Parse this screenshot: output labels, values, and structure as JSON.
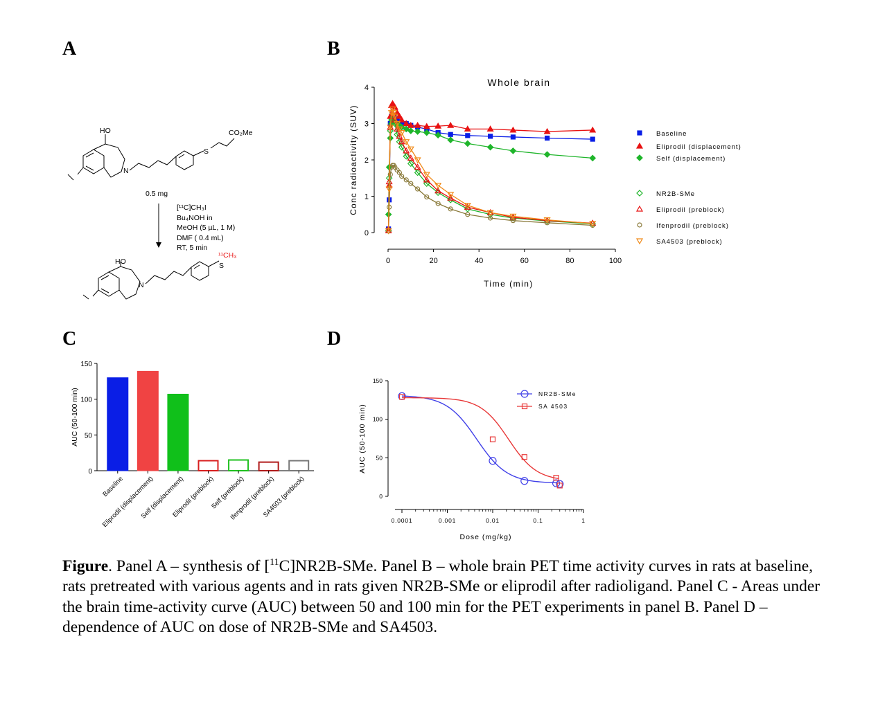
{
  "panels": {
    "a": "A",
    "b": "B",
    "c": "C",
    "d": "D"
  },
  "panel_a": {
    "reactant_ho": "HO",
    "reactant_n": "N",
    "reactant_s": "S",
    "reactant_ester": "CO₂Me",
    "amount": "0.5 mg",
    "reagents": [
      "[¹¹C]CH₃I",
      "Bu₄NOH in",
      "MeOH (5 µL, 1 M)",
      "DMF ( 0.4 mL)",
      "RT, 5 min"
    ],
    "product_ho": "HO",
    "product_n": "N",
    "product_s": "S",
    "product_label": "¹¹CH₃"
  },
  "chart_data": [
    {
      "panel": "B",
      "type": "line",
      "title": "Whole brain",
      "xlabel": "Time (min)",
      "ylabel": "Conc radioactivity (SUV)",
      "xlim": [
        0,
        100
      ],
      "ylim": [
        0,
        4
      ],
      "xticks": [
        "0",
        "20",
        "40",
        "60",
        "80",
        "100"
      ],
      "yticks": [
        "0",
        "1",
        "2",
        "3",
        "4"
      ],
      "legend_position": "right",
      "x": [
        0.2,
        0.5,
        1,
        1.5,
        2,
        2.5,
        3,
        4,
        5,
        6,
        8,
        10,
        13,
        17,
        22,
        27.5,
        35,
        45,
        55,
        70,
        90
      ],
      "series": [
        {
          "name": "Baseline",
          "color": "#0a1ee6",
          "marker": "square",
          "filled": true,
          "values": [
            0.1,
            0.9,
            3.0,
            3.2,
            3.2,
            3.2,
            3.15,
            3.1,
            3.05,
            3.0,
            3.0,
            2.95,
            2.9,
            2.85,
            2.75,
            2.7,
            2.67,
            2.65,
            2.63,
            2.6,
            2.57
          ]
        },
        {
          "name": "Eliprodil (displacement)",
          "color": "#e81212",
          "marker": "triangle",
          "filled": true,
          "values": [
            0.1,
            1.3,
            3.2,
            3.5,
            3.55,
            3.5,
            3.45,
            3.3,
            3.2,
            3.1,
            3.0,
            2.95,
            2.95,
            2.92,
            2.93,
            2.95,
            2.85,
            2.85,
            2.82,
            2.78,
            2.82
          ]
        },
        {
          "name": "Self (displacement)",
          "color": "#1fb52b",
          "marker": "diamond",
          "filled": true,
          "values": [
            0.5,
            1.8,
            2.6,
            3.0,
            3.1,
            3.1,
            3.05,
            3.0,
            2.95,
            2.9,
            2.85,
            2.8,
            2.78,
            2.75,
            2.68,
            2.55,
            2.45,
            2.35,
            2.25,
            2.15,
            2.05
          ]
        },
        {
          "name": "NR2B-SMe",
          "color": "#1fb52b",
          "marker": "diamond",
          "filled": false,
          "values": [
            0.05,
            1.5,
            2.8,
            3.1,
            3.2,
            3.1,
            3.0,
            2.7,
            2.5,
            2.35,
            2.1,
            1.9,
            1.65,
            1.35,
            1.1,
            0.9,
            0.65,
            0.5,
            0.4,
            0.32,
            0.24
          ]
        },
        {
          "name": "Eliprodil (preblock)",
          "color": "#e81212",
          "marker": "triangle",
          "filled": false,
          "values": [
            0.05,
            1.4,
            2.9,
            3.2,
            3.3,
            3.2,
            3.1,
            2.85,
            2.65,
            2.5,
            2.25,
            2.05,
            1.8,
            1.45,
            1.15,
            0.95,
            0.7,
            0.55,
            0.42,
            0.33,
            0.26
          ]
        },
        {
          "name": "Ifenprodil (preblock)",
          "color": "#8a7a3a",
          "marker": "circle",
          "filled": false,
          "values": [
            0.05,
            0.7,
            1.6,
            1.8,
            1.85,
            1.85,
            1.8,
            1.72,
            1.65,
            1.55,
            1.45,
            1.35,
            1.2,
            0.98,
            0.8,
            0.65,
            0.5,
            0.4,
            0.33,
            0.27,
            0.2
          ]
        },
        {
          "name": "SA4503 (preblock)",
          "color": "#f08a1a",
          "marker": "triangle-down",
          "filled": false,
          "values": [
            0.05,
            1.2,
            2.9,
            3.3,
            3.4,
            3.3,
            3.2,
            3.0,
            2.85,
            2.75,
            2.5,
            2.3,
            2.0,
            1.6,
            1.3,
            1.05,
            0.75,
            0.55,
            0.45,
            0.35,
            0.25
          ]
        }
      ]
    },
    {
      "panel": "C",
      "type": "bar",
      "ylabel": "AUC (50-100 min)",
      "ylim": [
        0,
        150
      ],
      "yticks": [
        "0",
        "50",
        "100",
        "150"
      ],
      "categories": [
        "Baseline",
        "Eliprodil (displacement)",
        "Self (displacement)",
        "Eliprodil (preblock)",
        "Self (preblock)",
        "Ifenprodil (preblock)",
        "SA4503 (preblock)"
      ],
      "values": [
        130,
        139,
        107,
        14,
        15,
        12,
        14
      ],
      "colors": [
        "#0a1ee6",
        "#f04343",
        "#10c01a",
        "#d81e1e",
        "#1fc01f",
        "#b01a1a",
        "#777777"
      ],
      "filled": [
        true,
        true,
        true,
        false,
        false,
        false,
        false
      ]
    },
    {
      "panel": "D",
      "type": "scatter",
      "xlabel": "Dose (mg/kg)",
      "ylabel": "AUC (50-100 min)",
      "xscale": "log",
      "xlim": [
        0.0001,
        1
      ],
      "ylim": [
        0,
        150
      ],
      "xticks": [
        "0.0001",
        "0.001",
        "0.01",
        "0.1",
        "1"
      ],
      "yticks": [
        "0",
        "50",
        "100",
        "150"
      ],
      "legend_position": "top-right",
      "series": [
        {
          "name": "NR2B-SMe",
          "color": "#4040e8",
          "marker": "circle",
          "x": [
            0.0001,
            0.01,
            0.05,
            0.25,
            0.3
          ],
          "y": [
            130,
            46,
            20,
            17,
            16
          ],
          "fit": {
            "top": 131,
            "bottom": 17,
            "log_ec50": -2.35,
            "hill": 1.3
          }
        },
        {
          "name": "SA 4503",
          "color": "#e83838",
          "marker": "square",
          "x": [
            0.0001,
            0.01,
            0.05,
            0.25,
            0.3
          ],
          "y": [
            129,
            74,
            51,
            24,
            14
          ],
          "fit": {
            "top": 128,
            "bottom": 20,
            "log_ec50": -1.65,
            "hill": 1.4
          }
        }
      ]
    }
  ],
  "caption": {
    "label": "Figure",
    "text_1": ".  Panel A – synthesis of [",
    "superscript": "11",
    "text_2": "C]NR2B-SMe.  Panel B – whole brain PET time activity curves in rats at baseline, rats pretreated with various agents and in rats given NR2B-SMe or eliprodil after radioligand.  Panel C -  Areas under the brain time-activity curve (AUC) between 50 and 100 min for the PET experiments in panel B. Panel D – dependence of AUC on dose of NR2B-SMe and SA4503."
  }
}
